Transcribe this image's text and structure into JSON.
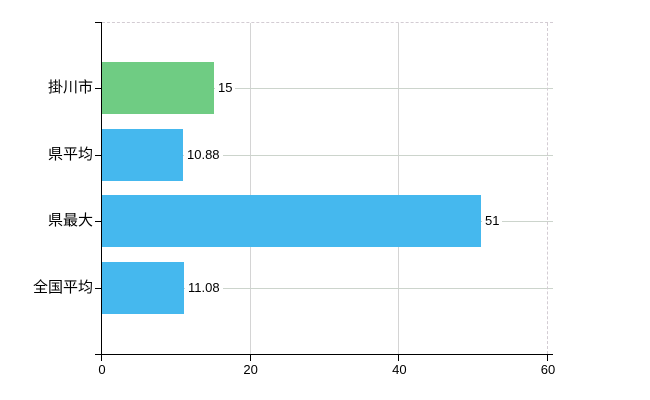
{
  "chart_data": {
    "type": "bar",
    "orientation": "horizontal",
    "title": "",
    "xlabel": "",
    "ylabel": "",
    "categories": [
      "掛川市",
      "県平均",
      "県最大",
      "全国平均"
    ],
    "values": [
      15,
      10.88,
      51,
      11.08
    ],
    "value_labels": [
      "15",
      "10.88",
      "51",
      "11.08"
    ],
    "bar_colors": [
      "#6fcc83",
      "#45b8ee",
      "#45b8ee",
      "#45b8ee"
    ],
    "xlim": [
      0,
      60
    ],
    "x_ticks": [
      0,
      20,
      40,
      60
    ],
    "x_tick_labels": [
      "0",
      "20",
      "40",
      "60"
    ],
    "grid": true,
    "legend": false
  },
  "colors": {
    "background": "#ffffff",
    "axis": "#000000",
    "vertical_gridline": "#d4d4d4",
    "row_gridline": "#ccd4cc",
    "dashed_border": "#d3ccd3",
    "text": "#000000",
    "bar_highlight_green": "#6fcc83",
    "bar_blue": "#45b8ee"
  }
}
